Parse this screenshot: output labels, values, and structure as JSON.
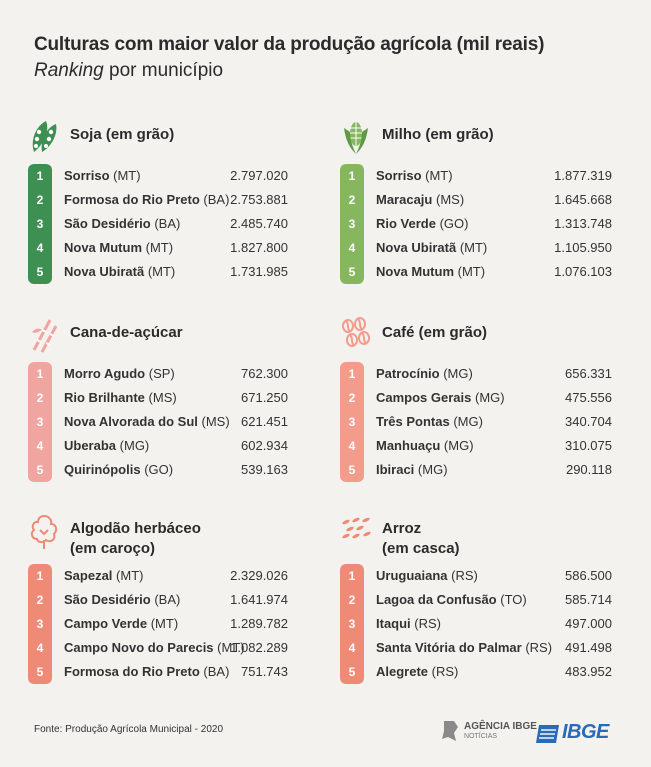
{
  "title": "Culturas com maior valor da produção agrícola (mil reais)",
  "subtitle_italic": "Ranking",
  "subtitle_rest": " por município",
  "colors": {
    "soja": "#3e8f52",
    "milho": "#86b75e",
    "cana": "#f0a5a0",
    "cafe": "#f39c8b",
    "algodao": "#ef8a77",
    "arroz": "#ee8a75"
  },
  "sections": {
    "soja": {
      "title": "Soja (em grão)",
      "icon": "soy-icon",
      "rows": [
        {
          "rank": "1",
          "name": "Sorriso",
          "uf": "(MT)",
          "value": "2.797.020"
        },
        {
          "rank": "2",
          "name": "Formosa do Rio Preto",
          "uf": "(BA)",
          "value": "2.753.881"
        },
        {
          "rank": "3",
          "name": "São Desidério",
          "uf": "(BA)",
          "value": "2.485.740"
        },
        {
          "rank": "4",
          "name": "Nova Mutum",
          "uf": "(MT)",
          "value": "1.827.800"
        },
        {
          "rank": "5",
          "name": "Nova Ubiratã",
          "uf": "(MT)",
          "value": "1.731.985"
        }
      ]
    },
    "milho": {
      "title": "Milho (em grão)",
      "icon": "corn-icon",
      "rows": [
        {
          "rank": "1",
          "name": "Sorriso",
          "uf": "(MT)",
          "value": "1.877.319"
        },
        {
          "rank": "2",
          "name": "Maracaju",
          "uf": "(MS)",
          "value": "1.645.668"
        },
        {
          "rank": "3",
          "name": "Rio Verde",
          "uf": "(GO)",
          "value": "1.313.748"
        },
        {
          "rank": "4",
          "name": "Nova Ubiratã",
          "uf": "(MT)",
          "value": "1.105.950"
        },
        {
          "rank": "5",
          "name": "Nova Mutum",
          "uf": "(MT)",
          "value": "1.076.103"
        }
      ]
    },
    "cana": {
      "title": "Cana-de-açúcar",
      "icon": "sugarcane-icon",
      "rows": [
        {
          "rank": "1",
          "name": "Morro Agudo",
          "uf": "(SP)",
          "value": "762.300"
        },
        {
          "rank": "2",
          "name": "Rio Brilhante",
          "uf": "(MS)",
          "value": "671.250"
        },
        {
          "rank": "3",
          "name": "Nova Alvorada do Sul",
          "uf": "(MS)",
          "value": "621.451"
        },
        {
          "rank": "4",
          "name": "Uberaba",
          "uf": "(MG)",
          "value": "602.934"
        },
        {
          "rank": "5",
          "name": "Quirinópolis",
          "uf": "(GO)",
          "value": "539.163"
        }
      ]
    },
    "cafe": {
      "title": "Café (em grão)",
      "icon": "coffee-beans-icon",
      "rows": [
        {
          "rank": "1",
          "name": "Patrocínio",
          "uf": "(MG)",
          "value": "656.331"
        },
        {
          "rank": "2",
          "name": "Campos Gerais",
          "uf": "(MG)",
          "value": "475.556"
        },
        {
          "rank": "3",
          "name": "Três Pontas",
          "uf": "(MG)",
          "value": "340.704"
        },
        {
          "rank": "4",
          "name": "Manhuaçu",
          "uf": "(MG)",
          "value": "310.075"
        },
        {
          "rank": "5",
          "name": "Ibiraci",
          "uf": "(MG)",
          "value": "290.118"
        }
      ]
    },
    "algodao": {
      "title": "Algodão herbáceo",
      "title2": "(em caroço)",
      "icon": "cotton-icon",
      "rows": [
        {
          "rank": "1",
          "name": "Sapezal",
          "uf": "(MT)",
          "value": "2.329.026"
        },
        {
          "rank": "2",
          "name": "São Desidério",
          "uf": "(BA)",
          "value": "1.641.974"
        },
        {
          "rank": "3",
          "name": "Campo Verde",
          "uf": "(MT)",
          "value": "1.289.782"
        },
        {
          "rank": "4",
          "name": "Campo Novo do Parecis",
          "uf": "(MT)",
          "value": "1.082.289"
        },
        {
          "rank": "5",
          "name": "Formosa do Rio Preto",
          "uf": "(BA)",
          "value": "751.743"
        }
      ]
    },
    "arroz": {
      "title": "Arroz",
      "title2": "(em casca)",
      "icon": "rice-grains-icon",
      "rows": [
        {
          "rank": "1",
          "name": "Uruguaiana",
          "uf": "(RS)",
          "value": "586.500"
        },
        {
          "rank": "2",
          "name": "Lagoa da Confusão",
          "uf": "(TO)",
          "value": "585.714"
        },
        {
          "rank": "3",
          "name": "Itaqui",
          "uf": "(RS)",
          "value": "497.000"
        },
        {
          "rank": "4",
          "name": "Santa Vitória do Palmar",
          "uf": "(RS)",
          "value": "491.498"
        },
        {
          "rank": "5",
          "name": "Alegrete",
          "uf": "(RS)",
          "value": "483.952"
        }
      ]
    }
  },
  "footer": "Fonte: Produção Agrícola Municipal - 2020",
  "logos": {
    "agencia_line1": "AGÊNCIA IBGE",
    "agencia_line2": "NOTÍCIAS",
    "ibge": "IBGE"
  }
}
